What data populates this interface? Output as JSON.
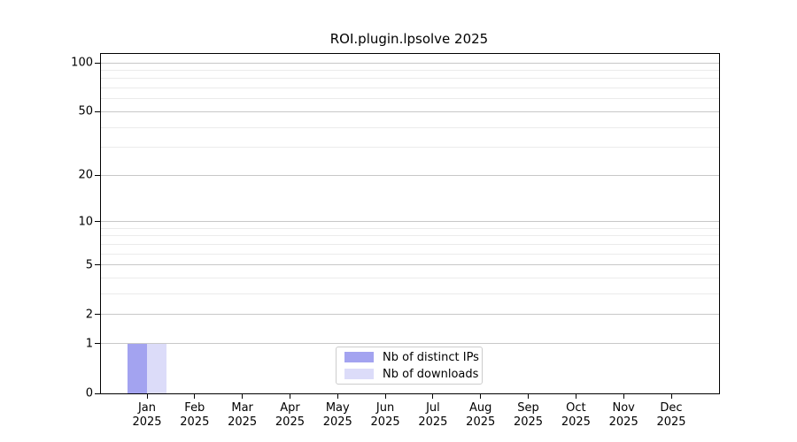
{
  "title": "ROI.plugin.lpsolve 2025",
  "colors": {
    "distinct_ips": "#a3a3f0",
    "downloads": "#dcdcf9",
    "axis": "#000000",
    "grid_major": "#c8c8c8",
    "grid_minor": "#ebebeb",
    "legend_border": "#cccccc"
  },
  "legend": {
    "items": [
      {
        "label": "Nb of distinct IPs",
        "color_key": "distinct_ips"
      },
      {
        "label": "Nb of downloads",
        "color_key": "downloads"
      }
    ]
  },
  "x_axis": {
    "months": [
      "Jan",
      "Feb",
      "Mar",
      "Apr",
      "May",
      "Jun",
      "Jul",
      "Aug",
      "Sep",
      "Oct",
      "Nov",
      "Dec"
    ],
    "year": "2025"
  },
  "y_axis": {
    "major_ticks": [
      0,
      1,
      2,
      5,
      10,
      20,
      50,
      100
    ],
    "minor_ticks": [
      3,
      4,
      6,
      7,
      8,
      9,
      30,
      40,
      60,
      70,
      80,
      90
    ],
    "scale": "log1p",
    "max": 100
  },
  "chart_data": {
    "type": "bar",
    "title": "ROI.plugin.lpsolve 2025",
    "categories": [
      "Jan 2025",
      "Feb 2025",
      "Mar 2025",
      "Apr 2025",
      "May 2025",
      "Jun 2025",
      "Jul 2025",
      "Aug 2025",
      "Sep 2025",
      "Oct 2025",
      "Nov 2025",
      "Dec 2025"
    ],
    "series": [
      {
        "name": "Nb of distinct IPs",
        "color": "#a3a3f0",
        "values": [
          1,
          0,
          0,
          0,
          0,
          0,
          0,
          0,
          0,
          0,
          0,
          0
        ]
      },
      {
        "name": "Nb of downloads",
        "color": "#dcdcf9",
        "values": [
          1,
          0,
          0,
          0,
          0,
          0,
          0,
          0,
          0,
          0,
          0,
          0
        ]
      }
    ],
    "xlabel": "",
    "ylabel": "",
    "yscale": "log1p",
    "ylim": [
      0,
      100
    ],
    "ytick_values": [
      0,
      1,
      2,
      5,
      10,
      20,
      50,
      100
    ],
    "grid": true,
    "legend_position": "inside-bottom-center"
  }
}
